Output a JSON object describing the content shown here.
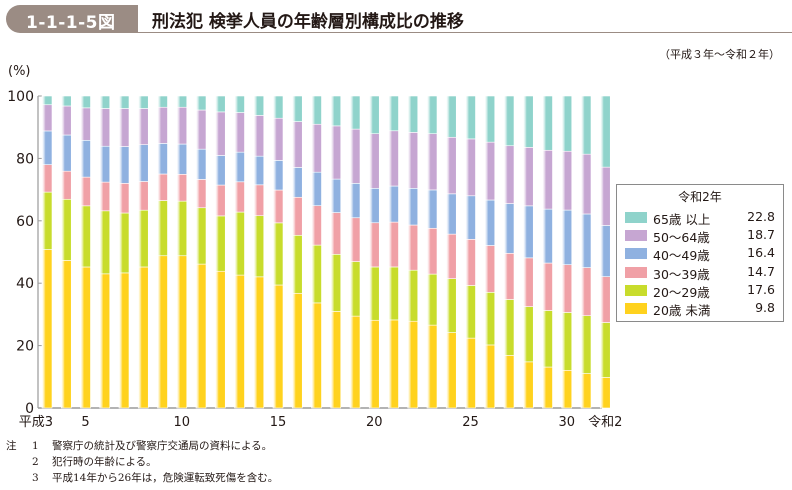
{
  "header": {
    "figure_number": "1-1-1-5図",
    "title": "刑法犯 検挙人員の年齢層別構成比の推移"
  },
  "period": "（平成３年～令和２年）",
  "notes": {
    "mark": "注",
    "items": [
      {
        "num": "1",
        "text": "警察庁の統計及び警察庁交通局の資料による。"
      },
      {
        "num": "2",
        "text": "犯行時の年齢による。"
      },
      {
        "num": "3",
        "text": "平成14年から26年は，危険運転致死傷を含む。"
      }
    ]
  },
  "colors": {
    "65+": "#8fd3cb",
    "50-64": "#c6a6d2",
    "40-49": "#8fb1e0",
    "30-39": "#f0a0a6",
    "20-29": "#c8dc2c",
    "u20": "#ffd21e",
    "axis": "#9a9a9a"
  },
  "chart_data": {
    "type": "bar",
    "stacked": true,
    "title": "刑法犯 検挙人員の年齢層別構成比の推移",
    "ylabel": "(%)",
    "ylim": [
      0,
      100
    ],
    "yticks": [
      0,
      20,
      40,
      60,
      80,
      100
    ],
    "xtick_labels": [
      {
        "index": 0,
        "label": "平成3"
      },
      {
        "index": 2,
        "label": "5"
      },
      {
        "index": 7,
        "label": "10"
      },
      {
        "index": 12,
        "label": "15"
      },
      {
        "index": 17,
        "label": "20"
      },
      {
        "index": 22,
        "label": "25"
      },
      {
        "index": 27,
        "label": "30"
      },
      {
        "index": 29,
        "label": "令和2"
      }
    ],
    "categories": [
      "平成3",
      "4",
      "5",
      "6",
      "7",
      "8",
      "9",
      "10",
      "11",
      "12",
      "13",
      "14",
      "15",
      "16",
      "17",
      "18",
      "19",
      "20",
      "21",
      "22",
      "23",
      "24",
      "25",
      "26",
      "27",
      "28",
      "29",
      "30",
      "令和元",
      "令和2"
    ],
    "legend": {
      "title": "令和2年",
      "position": "right",
      "entries": [
        {
          "key": "65+",
          "label": "65歳 以上",
          "value": "22.8"
        },
        {
          "key": "50-64",
          "label": "50～64歳",
          "value": "18.7"
        },
        {
          "key": "40-49",
          "label": "40～49歳",
          "value": "16.4"
        },
        {
          "key": "30-39",
          "label": "30～39歳",
          "value": "14.7"
        },
        {
          "key": "20-29",
          "label": "20～29歳",
          "value": "17.6"
        },
        {
          "key": "u20",
          "label": "20歳 未満",
          "value": "9.8"
        }
      ]
    },
    "series": [
      {
        "name": "20歳未満",
        "key": "u20",
        "values": [
          50.8,
          47.3,
          45.2,
          43.0,
          43.3,
          45.2,
          48.8,
          48.8,
          45.2,
          43.0,
          42.6,
          41.2,
          38.2,
          35.0,
          32.0,
          29.4,
          28.3,
          27.0,
          27.1,
          26.7,
          25.5,
          23.2,
          21.5,
          19.4,
          16.2,
          14.2,
          12.6,
          11.6,
          10.6,
          9.8
        ]
      },
      {
        "name": "20～29歳",
        "key": "u20-29",
        "values": [
          18.4,
          19.6,
          19.6,
          20.2,
          19.2,
          18.2,
          17.7,
          17.5,
          17.7,
          17.4,
          20.2,
          19.2,
          19.3,
          17.7,
          17.6,
          17.4,
          16.8,
          16.4,
          16.3,
          15.7,
          15.7,
          16.6,
          16.2,
          16.2,
          17.2,
          17.0,
          17.4,
          17.8,
          17.8,
          17.6
        ]
      },
      {
        "name": "30～39歳",
        "key": "30-39",
        "values": [
          8.8,
          9.0,
          9.2,
          9.2,
          9.5,
          9.2,
          8.5,
          8.6,
          8.9,
          9.7,
          9.7,
          9.7,
          10.2,
          11.6,
          12.0,
          12.7,
          13.5,
          13.6,
          13.8,
          13.9,
          14.1,
          13.7,
          14.2,
          14.4,
          14.2,
          15.0,
          14.6,
          14.7,
          14.8,
          14.7
        ]
      },
      {
        "name": "40～49歳",
        "key": "40-49",
        "values": [
          10.8,
          11.6,
          11.8,
          11.5,
          11.8,
          11.8,
          9.8,
          9.7,
          9.5,
          9.3,
          9.5,
          9.0,
          9.2,
          9.1,
          10.2,
          10.2,
          10.6,
          10.6,
          11.1,
          11.3,
          11.8,
          12.4,
          13.4,
          14.0,
          15.3,
          16.0,
          16.6,
          16.8,
          16.5,
          16.4
        ]
      },
      {
        "name": "50～64歳",
        "key": "50-64",
        "values": [
          8.4,
          9.3,
          10.4,
          12.1,
          12.2,
          11.6,
          11.6,
          11.8,
          12.3,
          13.7,
          12.7,
          12.8,
          13.1,
          14.0,
          14.6,
          16.2,
          16.7,
          16.8,
          17.0,
          17.2,
          17.3,
          17.4,
          17.5,
          17.8,
          17.8,
          18.0,
          18.1,
          18.1,
          18.4,
          18.7
        ]
      },
      {
        "name": "65歳以上",
        "key": "65+",
        "values": [
          2.8,
          3.2,
          3.8,
          4.0,
          4.0,
          4.0,
          3.6,
          3.6,
          4.4,
          5.0,
          5.3,
          6.1,
          6.9,
          7.8,
          8.6,
          9.1,
          10.2,
          11.6,
          10.7,
          11.2,
          11.6,
          12.7,
          13.2,
          14.2,
          15.3,
          15.8,
          16.7,
          17.0,
          17.9,
          22.8
        ]
      }
    ]
  }
}
